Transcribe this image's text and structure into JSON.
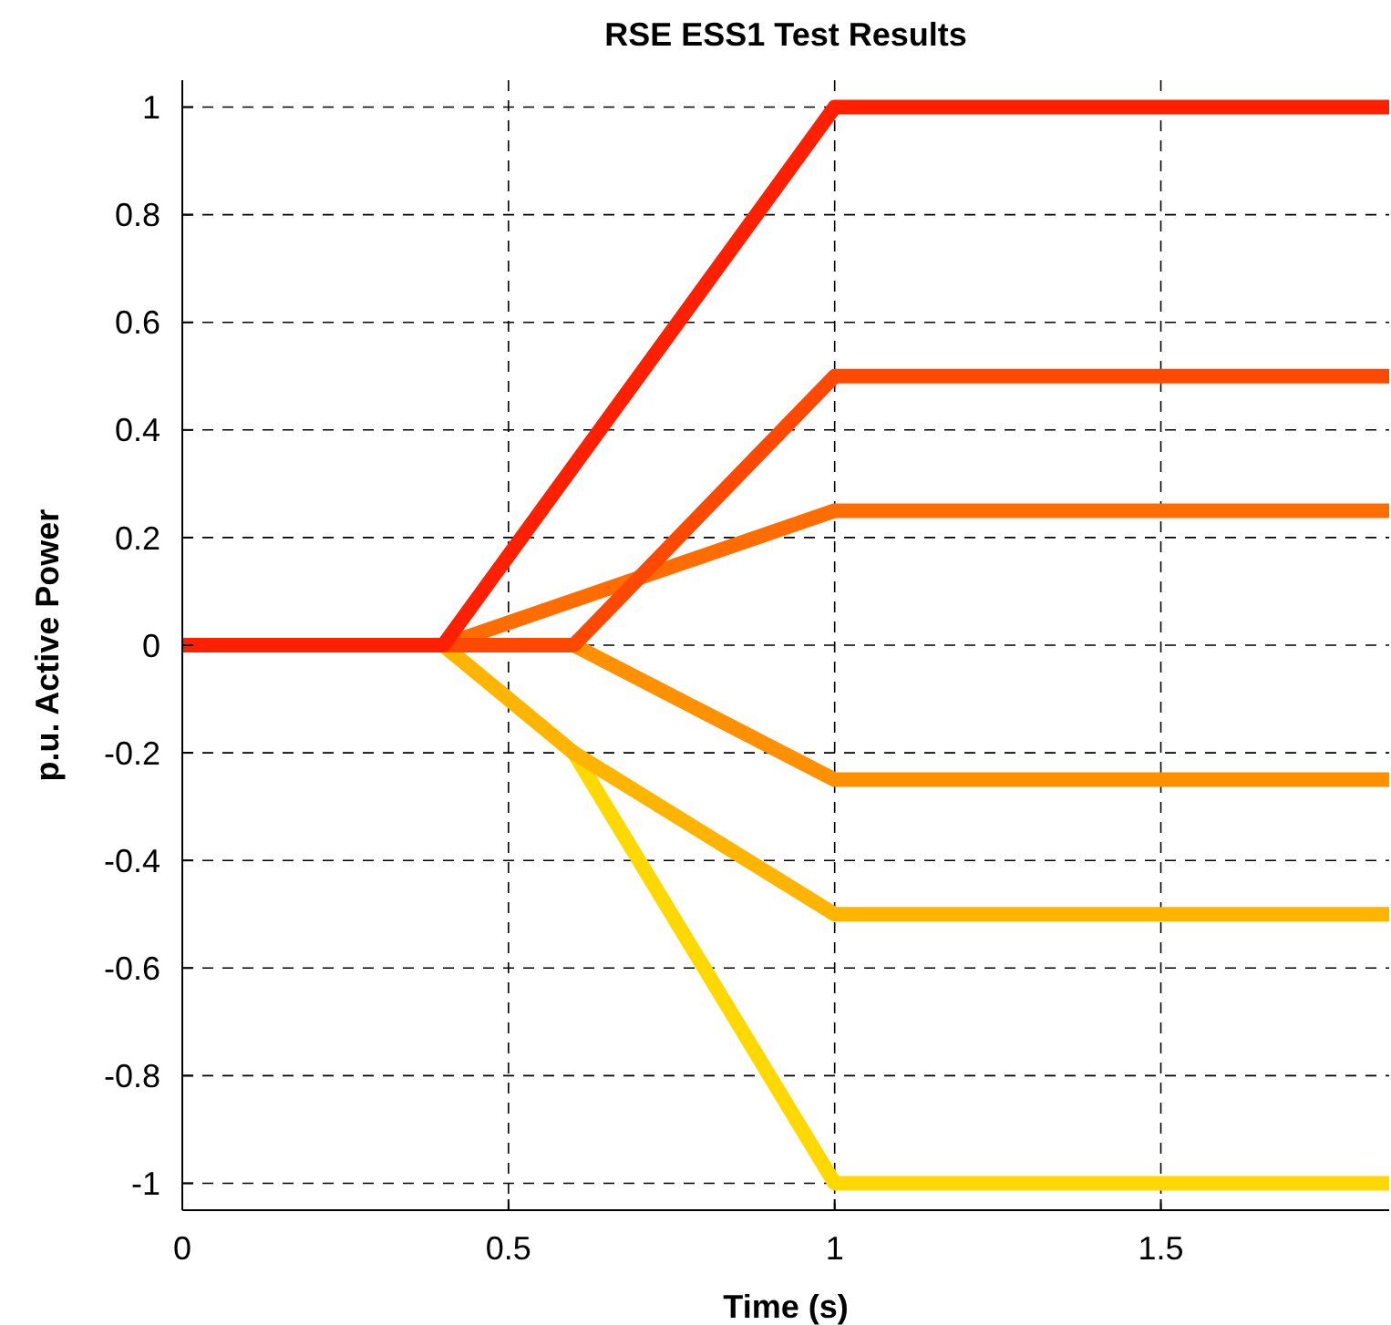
{
  "chart_data": {
    "type": "line",
    "title": "RSE ESS1 Test Results",
    "xlabel": "Time (s)",
    "ylabel": "p.u. Active Power",
    "xlim": [
      0,
      1.85
    ],
    "xticks": [
      0,
      0.5,
      1,
      1.5
    ],
    "ylim": [
      -1.05,
      1.05
    ],
    "yticks": [
      -1,
      -0.8,
      -0.6,
      -0.4,
      -0.2,
      0,
      0.2,
      0.4,
      0.6,
      0.8,
      1
    ],
    "grid": true,
    "line_style": "solid",
    "series": [
      {
        "color": "#ff2000",
        "x": [
          0,
          0.4,
          1,
          1.85
        ],
        "values": [
          0,
          0,
          1,
          1
        ]
      },
      {
        "color": "#ff4800",
        "x": [
          0,
          0.6,
          1,
          1.85
        ],
        "values": [
          0,
          0,
          0.5,
          0.5
        ]
      },
      {
        "color": "#ff6c00",
        "x": [
          0,
          0.4,
          1,
          1.85
        ],
        "values": [
          0,
          0,
          0.25,
          0.25
        ]
      },
      {
        "color": "#ff9000",
        "x": [
          0,
          0.6,
          1,
          1.85
        ],
        "values": [
          0,
          0,
          -0.25,
          -0.25
        ]
      },
      {
        "color": "#ffb400",
        "x": [
          0,
          0.4,
          0.6,
          1,
          1.85
        ],
        "values": [
          0,
          0,
          -0.2,
          -0.5,
          -0.5
        ]
      },
      {
        "color": "#ffd800",
        "x": [
          0,
          0.4,
          0.6,
          1,
          1.85
        ],
        "values": [
          0,
          0,
          -0.2,
          -1,
          -1
        ]
      }
    ]
  }
}
